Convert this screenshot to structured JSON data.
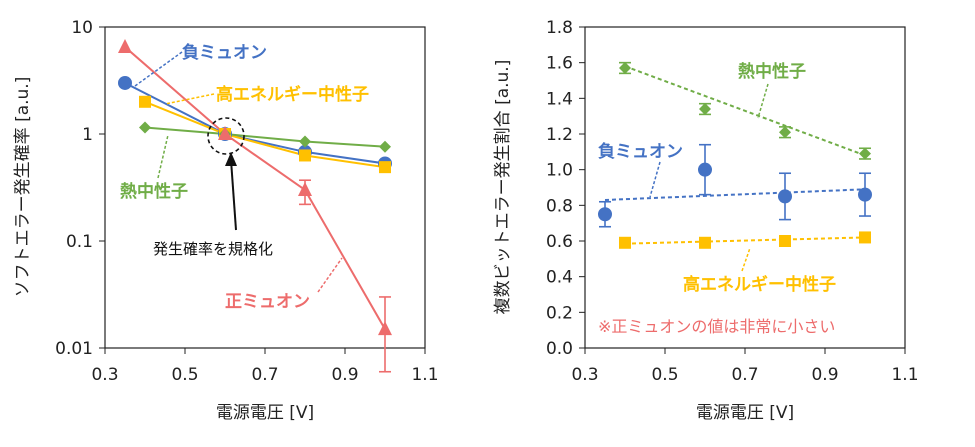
{
  "colors": {
    "negative_muon": "#4472C4",
    "positive_muon": "#ED6C6C",
    "high_energy_neutron": "#FFC000",
    "thermal_neutron": "#70AD47",
    "axis": "#222222"
  },
  "chart_data": [
    {
      "type": "line",
      "xlabel": "電源電圧 [V]",
      "ylabel": "ソフトエラー発生確率 [a.u.]",
      "xlim": [
        0.3,
        1.1
      ],
      "ylim": [
        0.01,
        10
      ],
      "yscale": "log",
      "xticks": [
        "0.3",
        "0.5",
        "0.7",
        "0.9",
        "1.1"
      ],
      "yticks": [
        "0.01",
        "0.1",
        "1",
        "10"
      ],
      "series": [
        {
          "name": "負ミュオン",
          "marker": "circle",
          "x": [
            0.35,
            0.6,
            0.8,
            1.0
          ],
          "y": [
            3.0,
            1.0,
            0.68,
            0.53
          ]
        },
        {
          "name": "高エネルギー中性子",
          "marker": "square",
          "x": [
            0.4,
            0.6,
            0.8,
            1.0
          ],
          "y": [
            2.0,
            1.0,
            0.63,
            0.49
          ]
        },
        {
          "name": "熱中性子",
          "marker": "diamond",
          "x": [
            0.4,
            0.6,
            0.8,
            1.0
          ],
          "y": [
            1.15,
            1.0,
            0.85,
            0.76
          ]
        },
        {
          "name": "正ミュオン",
          "marker": "triangle",
          "x": [
            0.35,
            0.6,
            0.8,
            1.0
          ],
          "y": [
            6.5,
            1.0,
            0.3,
            0.015
          ],
          "err_low": [
            6.5,
            1.0,
            0.22,
            0.006
          ],
          "err_high": [
            6.5,
            1.0,
            0.37,
            0.03
          ]
        }
      ],
      "annotations": {
        "negative_muon": "負ミュオン",
        "high_energy_neutron": "高エネルギー中性子",
        "thermal_neutron": "熱中性子",
        "positive_muon": "正ミュオン",
        "normalize": "発生確率を規格化"
      }
    },
    {
      "type": "scatter",
      "xlabel": "電源電圧 [V]",
      "ylabel": "複数ビットエラー発生割合 [a.u.]",
      "xlim": [
        0.3,
        1.1
      ],
      "ylim": [
        0.0,
        1.8
      ],
      "xticks": [
        "0.3",
        "0.5",
        "0.7",
        "0.9",
        "1.1"
      ],
      "yticks": [
        "0.0",
        "0.2",
        "0.4",
        "0.6",
        "0.8",
        "1.0",
        "1.2",
        "1.4",
        "1.6",
        "1.8"
      ],
      "series": [
        {
          "name": "熱中性子",
          "marker": "diamond",
          "x": [
            0.4,
            0.6,
            0.8,
            1.0
          ],
          "y": [
            1.57,
            1.34,
            1.21,
            1.09
          ],
          "err": [
            0.03,
            0.03,
            0.03,
            0.03
          ],
          "trend": [
            1.58,
            1.08
          ]
        },
        {
          "name": "負ミュオン",
          "marker": "circle",
          "x": [
            0.35,
            0.6,
            0.8,
            1.0
          ],
          "y": [
            0.75,
            1.0,
            0.85,
            0.86
          ],
          "err": [
            0.07,
            0.14,
            0.13,
            0.12
          ],
          "trend": [
            0.83,
            0.89
          ]
        },
        {
          "name": "高エネルギー中性子",
          "marker": "square",
          "x": [
            0.4,
            0.6,
            0.8,
            1.0
          ],
          "y": [
            0.59,
            0.59,
            0.6,
            0.62
          ],
          "err": [
            0,
            0,
            0,
            0
          ],
          "trend": [
            0.585,
            0.62
          ]
        }
      ],
      "annotations": {
        "thermal_neutron": "熱中性子",
        "negative_muon": "負ミュオン",
        "high_energy_neutron": "高エネルギー中性子",
        "note": "※正ミュオンの値は非常に小さい"
      }
    }
  ]
}
